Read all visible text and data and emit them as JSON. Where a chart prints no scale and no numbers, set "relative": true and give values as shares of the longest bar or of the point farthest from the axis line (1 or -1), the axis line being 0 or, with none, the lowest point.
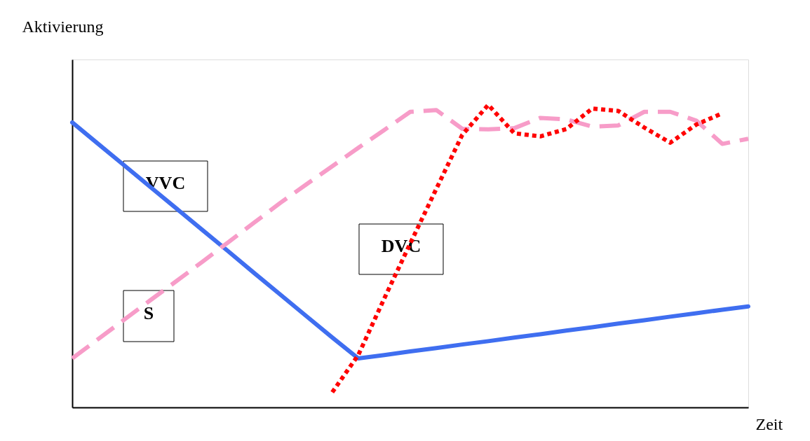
{
  "chart_data": {
    "type": "line",
    "relative": true,
    "xlabel": "Zeit",
    "ylabel": "Aktivierung",
    "grid": false,
    "marker": "none",
    "categories": [
      null,
      null,
      null,
      null,
      null,
      null,
      null,
      null,
      null,
      null,
      null,
      null,
      null,
      null,
      null,
      null,
      null,
      null,
      null,
      null,
      null,
      null,
      null,
      null,
      null,
      null,
      null
    ],
    "series": [
      {
        "name": "VVC",
        "color": "#3f6ef0",
        "line_style": "solid",
        "values": [
          0.942,
          0.871,
          0.8,
          0.729,
          0.658,
          0.587,
          0.516,
          0.444,
          0.373,
          0.302,
          0.231,
          0.162,
          0.173,
          0.185,
          0.196,
          0.208,
          0.219,
          0.231,
          0.242,
          0.254,
          0.265,
          0.277,
          0.288,
          0.3,
          0.311,
          0.323,
          0.334
        ]
      },
      {
        "name": "S",
        "color": "#f79cc8",
        "line_style": "dashed",
        "values": [
          0.162,
          0.226,
          0.29,
          0.354,
          0.417,
          0.481,
          0.546,
          0.611,
          0.676,
          0.737,
          0.797,
          0.858,
          0.917,
          0.977,
          0.983,
          0.921,
          0.919,
          0.923,
          0.957,
          0.952,
          0.928,
          0.932,
          0.977,
          0.977,
          0.948,
          0.871,
          0.888
        ]
      },
      {
        "name": "DVC",
        "color": "#ff0000",
        "line_style": "dotted",
        "values": [
          null,
          null,
          null,
          null,
          null,
          null,
          null,
          null,
          null,
          null,
          0.05,
          0.173,
          0.36,
          0.542,
          0.722,
          0.901,
          1.0,
          0.906,
          0.896,
          0.92,
          0.988,
          0.98,
          0.925,
          0.875,
          0.935,
          0.972,
          null
        ]
      }
    ]
  }
}
